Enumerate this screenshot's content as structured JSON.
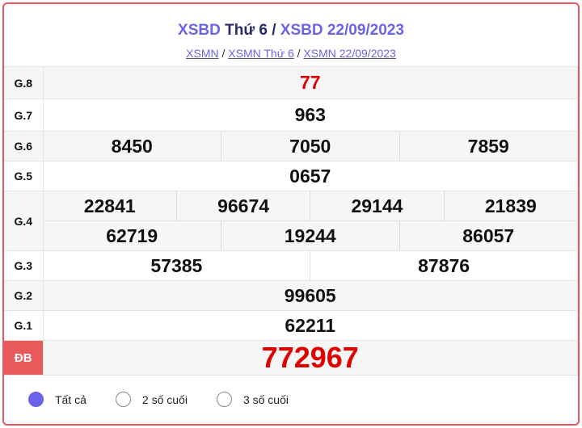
{
  "header": {
    "title_prefix": "XSBD",
    "title_day": "Thứ 6",
    "title_sep": "/",
    "title_date": "XSBD 22/09/2023",
    "links": [
      "XSMN",
      "XSMN Thứ 6",
      "XSMN 22/09/2023"
    ],
    "link_sep": "/"
  },
  "results": {
    "g8": {
      "label": "G.8",
      "values": [
        "77"
      ]
    },
    "g7": {
      "label": "G.7",
      "values": [
        "963"
      ]
    },
    "g6": {
      "label": "G.6",
      "values": [
        "8450",
        "7050",
        "7859"
      ]
    },
    "g5": {
      "label": "G.5",
      "values": [
        "0657"
      ]
    },
    "g4": {
      "label": "G.4",
      "values": [
        "22841",
        "96674",
        "29144",
        "21839",
        "62719",
        "19244",
        "86057"
      ]
    },
    "g3": {
      "label": "G.3",
      "values": [
        "57385",
        "87876"
      ]
    },
    "g2": {
      "label": "G.2",
      "values": [
        "99605"
      ]
    },
    "g1": {
      "label": "G.1",
      "values": [
        "62211"
      ]
    },
    "db": {
      "label": "ĐB",
      "values": [
        "772967"
      ]
    }
  },
  "filter": {
    "options": [
      "Tất cả",
      "2 số cuối",
      "3 số cuối"
    ],
    "selected": "Tất cả"
  },
  "colors": {
    "accent": "#6c63e8",
    "border": "#e85a5a",
    "special": "#e00000"
  }
}
